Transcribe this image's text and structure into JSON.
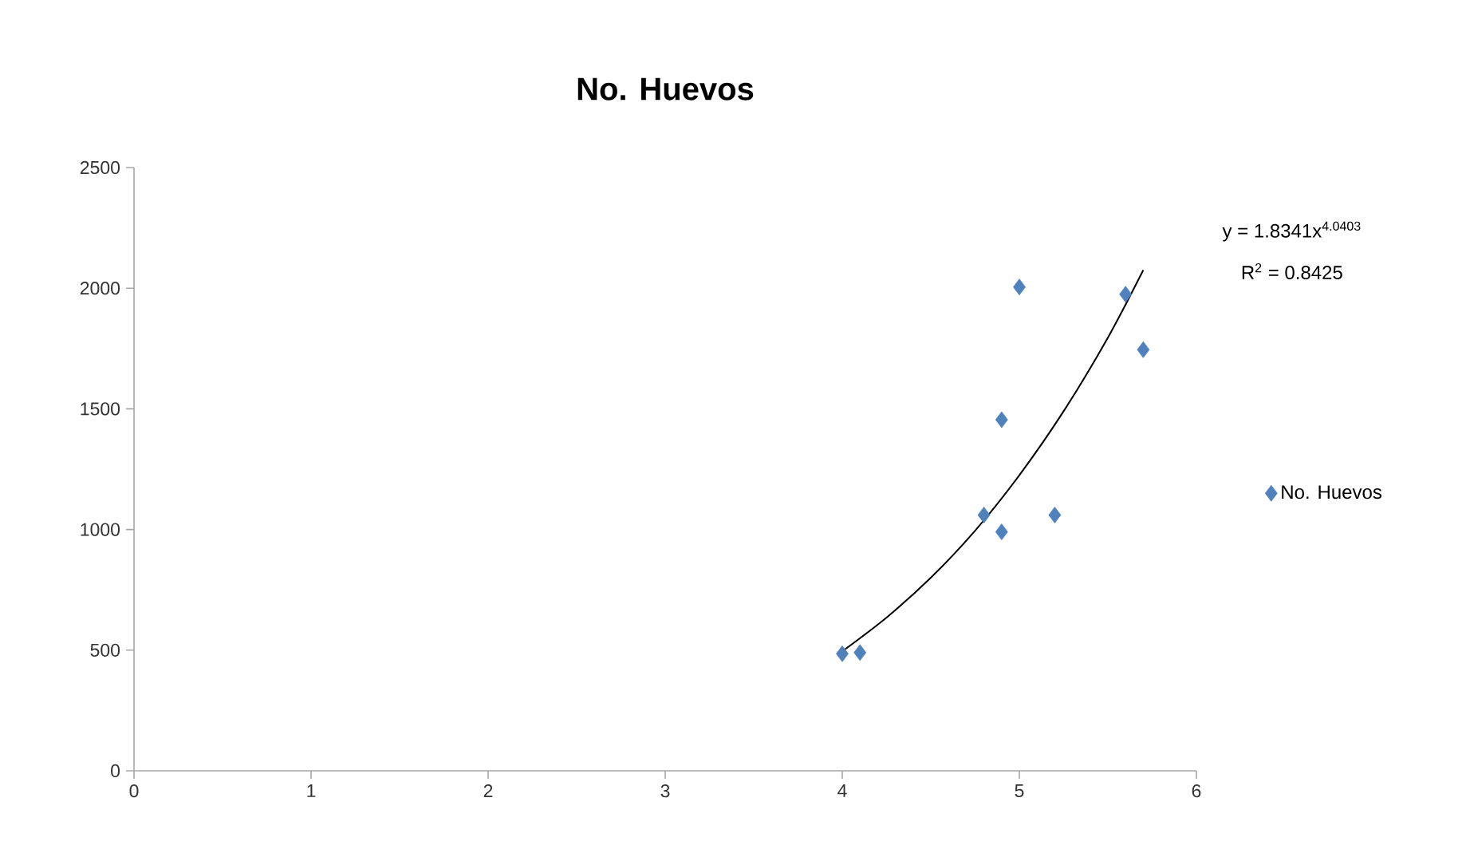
{
  "chart_data": {
    "type": "scatter",
    "title": "No. Huevos",
    "series": [
      {
        "name": "No. Huevos",
        "marker": "diamond",
        "color": "#4f81bd",
        "x": [
          4.0,
          4.1,
          4.8,
          4.9,
          4.9,
          5.0,
          5.2,
          5.6,
          5.7
        ],
        "values": [
          485,
          490,
          1060,
          990,
          1455,
          2005,
          1060,
          1975,
          1745
        ]
      },
      {
        "type": "line",
        "marker": "none",
        "color": "#000000",
        "x": [
          4.0,
          4.25,
          4.5,
          4.75,
          5.0,
          5.25,
          5.5,
          5.7
        ],
        "values": [
          495,
          635,
          800,
          995,
          1225,
          1490,
          1795,
          2075
        ]
      }
    ],
    "annotations": [
      "y = 1.8341x$^{4.0403}$",
      "R$^{2}$ = 0.8425"
    ],
    "xlim": [
      0,
      6
    ],
    "xticks": [
      0,
      1,
      2,
      3,
      4,
      5,
      6
    ],
    "ylim": [
      0,
      2500
    ],
    "yticks": [
      0,
      500,
      1000,
      1500,
      2000,
      2500
    ],
    "legend": "right",
    "grid": false
  }
}
